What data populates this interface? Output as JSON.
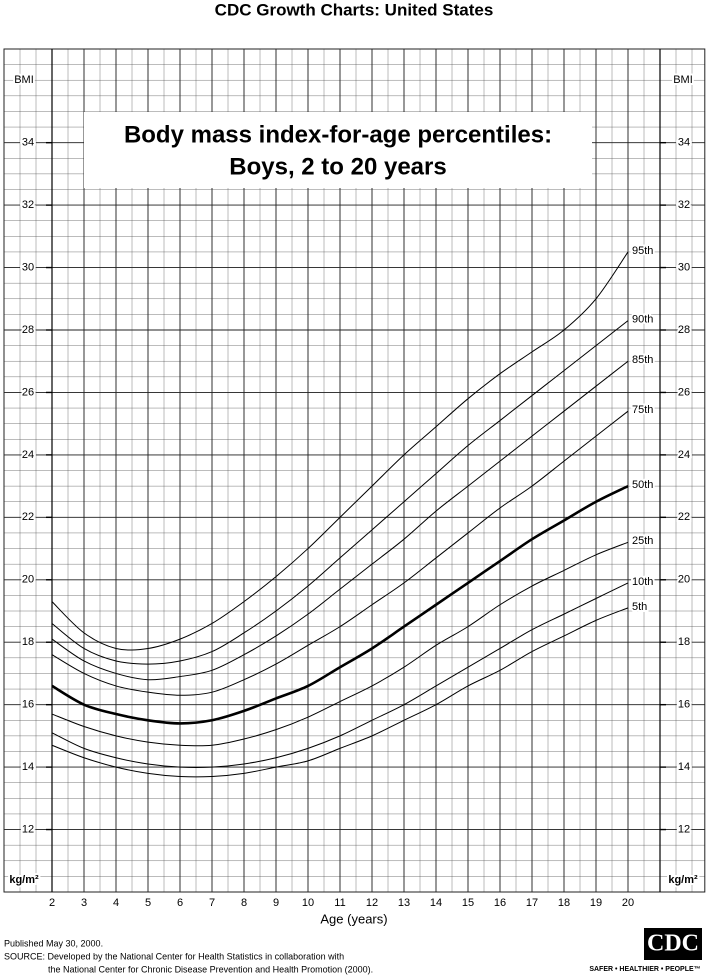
{
  "header": "CDC Growth Charts: United States",
  "chart_data": {
    "type": "line",
    "title": "Body mass index-for-age percentiles:",
    "subtitle": "Boys, 2 to 20 years",
    "xlabel": "Age (years)",
    "ylabel": "BMI",
    "yunit": "kg/m²",
    "x": [
      2,
      3,
      4,
      5,
      6,
      7,
      8,
      9,
      10,
      11,
      12,
      13,
      14,
      15,
      16,
      17,
      18,
      19,
      20
    ],
    "xlim": [
      0.5,
      22.4
    ],
    "xticks": [
      2,
      3,
      4,
      5,
      6,
      7,
      8,
      9,
      10,
      11,
      12,
      13,
      14,
      15,
      16,
      17,
      18,
      19,
      20
    ],
    "ylim": [
      10,
      37
    ],
    "yticks": [
      12,
      14,
      16,
      18,
      20,
      22,
      24,
      26,
      28,
      30,
      32,
      34
    ],
    "grid": true,
    "series": [
      {
        "name": "95th",
        "color": "#000000",
        "values": [
          19.3,
          18.3,
          17.8,
          17.8,
          18.1,
          18.6,
          19.3,
          20.1,
          21.0,
          22.0,
          23.0,
          24.0,
          24.9,
          25.8,
          26.6,
          27.3,
          28.0,
          29.0,
          30.5
        ]
      },
      {
        "name": "90th",
        "color": "#000000",
        "values": [
          18.6,
          17.8,
          17.4,
          17.3,
          17.4,
          17.7,
          18.3,
          19.0,
          19.8,
          20.7,
          21.6,
          22.5,
          23.4,
          24.3,
          25.1,
          25.9,
          26.7,
          27.5,
          28.3
        ]
      },
      {
        "name": "85th",
        "color": "#000000",
        "values": [
          18.1,
          17.4,
          17.0,
          16.8,
          16.9,
          17.1,
          17.6,
          18.2,
          18.9,
          19.7,
          20.5,
          21.3,
          22.2,
          23.0,
          23.8,
          24.6,
          25.4,
          26.2,
          27.0
        ]
      },
      {
        "name": "75th",
        "color": "#000000",
        "values": [
          17.6,
          17.0,
          16.6,
          16.4,
          16.3,
          16.4,
          16.8,
          17.3,
          17.9,
          18.5,
          19.2,
          19.9,
          20.7,
          21.5,
          22.3,
          23.0,
          23.8,
          24.6,
          25.4
        ]
      },
      {
        "name": "50th",
        "color": "#000000",
        "bold": true,
        "values": [
          16.6,
          16.0,
          15.7,
          15.5,
          15.4,
          15.5,
          15.8,
          16.2,
          16.6,
          17.2,
          17.8,
          18.5,
          19.2,
          19.9,
          20.6,
          21.3,
          21.9,
          22.5,
          23.0
        ]
      },
      {
        "name": "25th",
        "color": "#000000",
        "values": [
          15.7,
          15.3,
          15.0,
          14.8,
          14.7,
          14.7,
          14.9,
          15.2,
          15.6,
          16.1,
          16.6,
          17.2,
          17.9,
          18.5,
          19.2,
          19.8,
          20.3,
          20.8,
          21.2
        ]
      },
      {
        "name": "10th",
        "color": "#000000",
        "values": [
          15.1,
          14.6,
          14.3,
          14.1,
          14.0,
          14.0,
          14.1,
          14.3,
          14.6,
          15.0,
          15.5,
          16.0,
          16.6,
          17.2,
          17.8,
          18.4,
          18.9,
          19.4,
          19.9
        ]
      },
      {
        "name": "5th",
        "color": "#000000",
        "values": [
          14.7,
          14.3,
          14.0,
          13.8,
          13.7,
          13.7,
          13.8,
          14.0,
          14.2,
          14.6,
          15.0,
          15.5,
          16.0,
          16.6,
          17.1,
          17.7,
          18.2,
          18.7,
          19.1
        ]
      }
    ]
  },
  "footer": {
    "published": "Published May 30, 2000.",
    "source": "SOURCE: Developed by the National Center for Health Statistics in collaboration with",
    "source2": "the National Center for Chronic Disease Prevention and Health Promotion (2000).",
    "logo": "CDC",
    "motto": "SAFER • HEALTHIER • PEOPLE™"
  }
}
